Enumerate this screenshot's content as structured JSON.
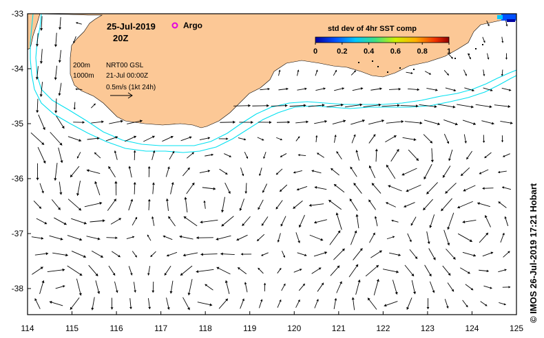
{
  "map": {
    "date": "25-Jul-2019",
    "time": "20Z",
    "argo_label": "Argo",
    "argo_color": "#e000e0",
    "land_color": "#fcc896",
    "contour_color": "#00e0f0",
    "info": {
      "line1_depth": "200m",
      "line1_text": "NRT00 GSL",
      "line2_depth": "1000m",
      "line2_text": "21-Jul 00:00Z",
      "scale_text": "0.5m/s (1kt 24h)"
    },
    "colorbar": {
      "title": "std dev of 4hr SST comp",
      "ticks": [
        "0",
        "0.2",
        "0.4",
        "0.6",
        "0.8",
        "1"
      ]
    },
    "x_ticks": [
      "114",
      "115",
      "116",
      "117",
      "118",
      "119",
      "120",
      "121",
      "122",
      "123",
      "124",
      "125"
    ],
    "y_ticks": [
      "-33",
      "-34",
      "-35",
      "-36",
      "-37",
      "-38"
    ],
    "credit": "© IMOS 26-Jul-2019 17:21 Hobart"
  }
}
